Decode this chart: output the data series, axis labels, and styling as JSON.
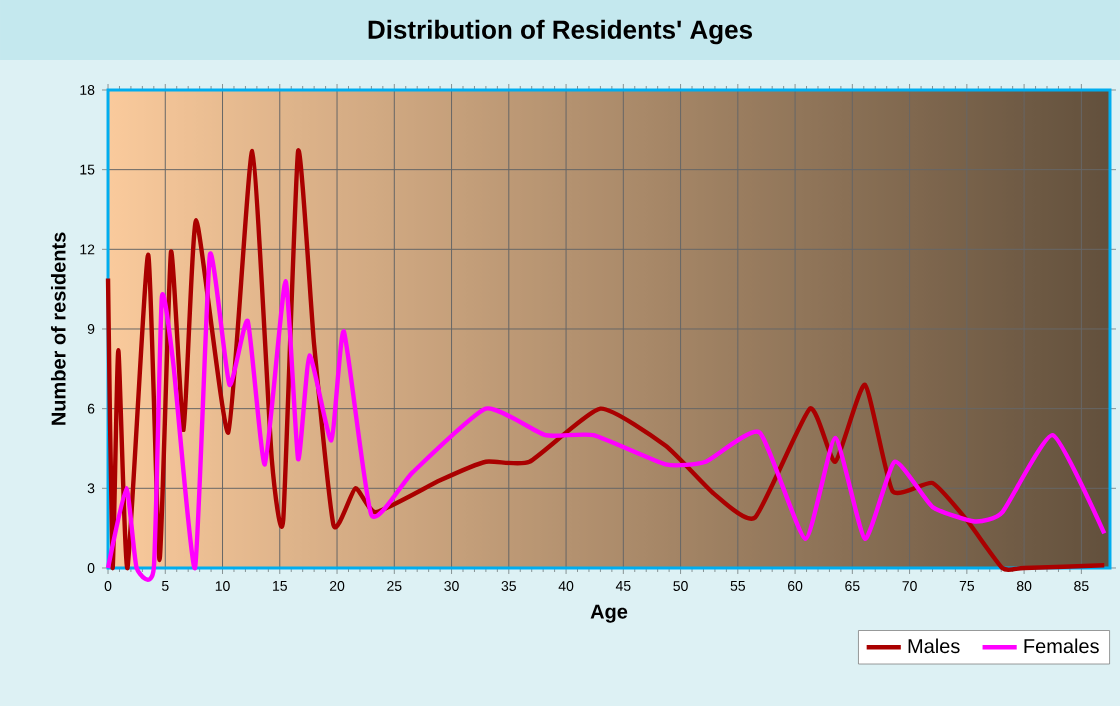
{
  "chart_data": {
    "type": "line",
    "title": "Distribution of Residents' Ages",
    "xlabel": "Age",
    "ylabel": "Number of residents",
    "xlim": [
      0,
      87.5
    ],
    "ylim": [
      0,
      18
    ],
    "xticks": [
      0,
      5,
      10,
      15,
      20,
      25,
      30,
      35,
      40,
      45,
      50,
      55,
      60,
      65,
      70,
      75,
      80,
      85
    ],
    "yticks": [
      0,
      3,
      6,
      9,
      12,
      15,
      18
    ],
    "grid": true,
    "legend": "bottom right",
    "marker": "none",
    "line_style": "solid",
    "series": [
      {
        "name": "Males",
        "color": "#aa0000",
        "x": [
          0,
          0.4,
          0.9,
          1.7,
          3.5,
          4.5,
          5.5,
          6.6,
          7.7,
          10.5,
          12.6,
          14.3,
          15.3,
          16.6,
          18,
          19.7,
          21.6,
          23.4,
          29,
          33,
          36.8,
          43,
          48.7,
          52.9,
          56.5,
          61.3,
          63.5,
          66.1,
          68.5,
          72,
          75,
          78.1,
          80,
          87
        ],
        "values": [
          10.9,
          0,
          8.2,
          0,
          11.8,
          0.3,
          11.9,
          5.2,
          13.1,
          5.1,
          15.7,
          4.1,
          1.8,
          15.7,
          8.4,
          1.6,
          3.0,
          2.1,
          3.3,
          4.0,
          4.0,
          6.0,
          4.6,
          2.8,
          1.9,
          6.0,
          4.0,
          6.9,
          2.9,
          3.2,
          1.8,
          0,
          0,
          0.1
        ]
      },
      {
        "name": "Females",
        "color": "#ff00ff",
        "x": [
          0,
          1.6,
          2.5,
          4,
          4.7,
          5.7,
          7.6,
          8.9,
          10.6,
          12.2,
          13.7,
          15.5,
          16.6,
          17.6,
          19.5,
          20.6,
          23,
          26.6,
          33,
          38.2,
          42.4,
          48.7,
          52.2,
          56.9,
          60.9,
          63.5,
          66.1,
          68.7,
          72,
          75.7,
          78.1,
          82.5,
          87
        ],
        "values": [
          0,
          3.0,
          0,
          0,
          10.2,
          7.7,
          0,
          11.8,
          6.9,
          9.3,
          3.9,
          10.8,
          4.1,
          8.0,
          4.8,
          8.9,
          2.0,
          3.6,
          6.0,
          5.0,
          5.0,
          3.9,
          4.0,
          5.1,
          1.1,
          4.9,
          1.1,
          4.0,
          2.3,
          1.75,
          2.1,
          5.0,
          1.3
        ]
      }
    ]
  }
}
